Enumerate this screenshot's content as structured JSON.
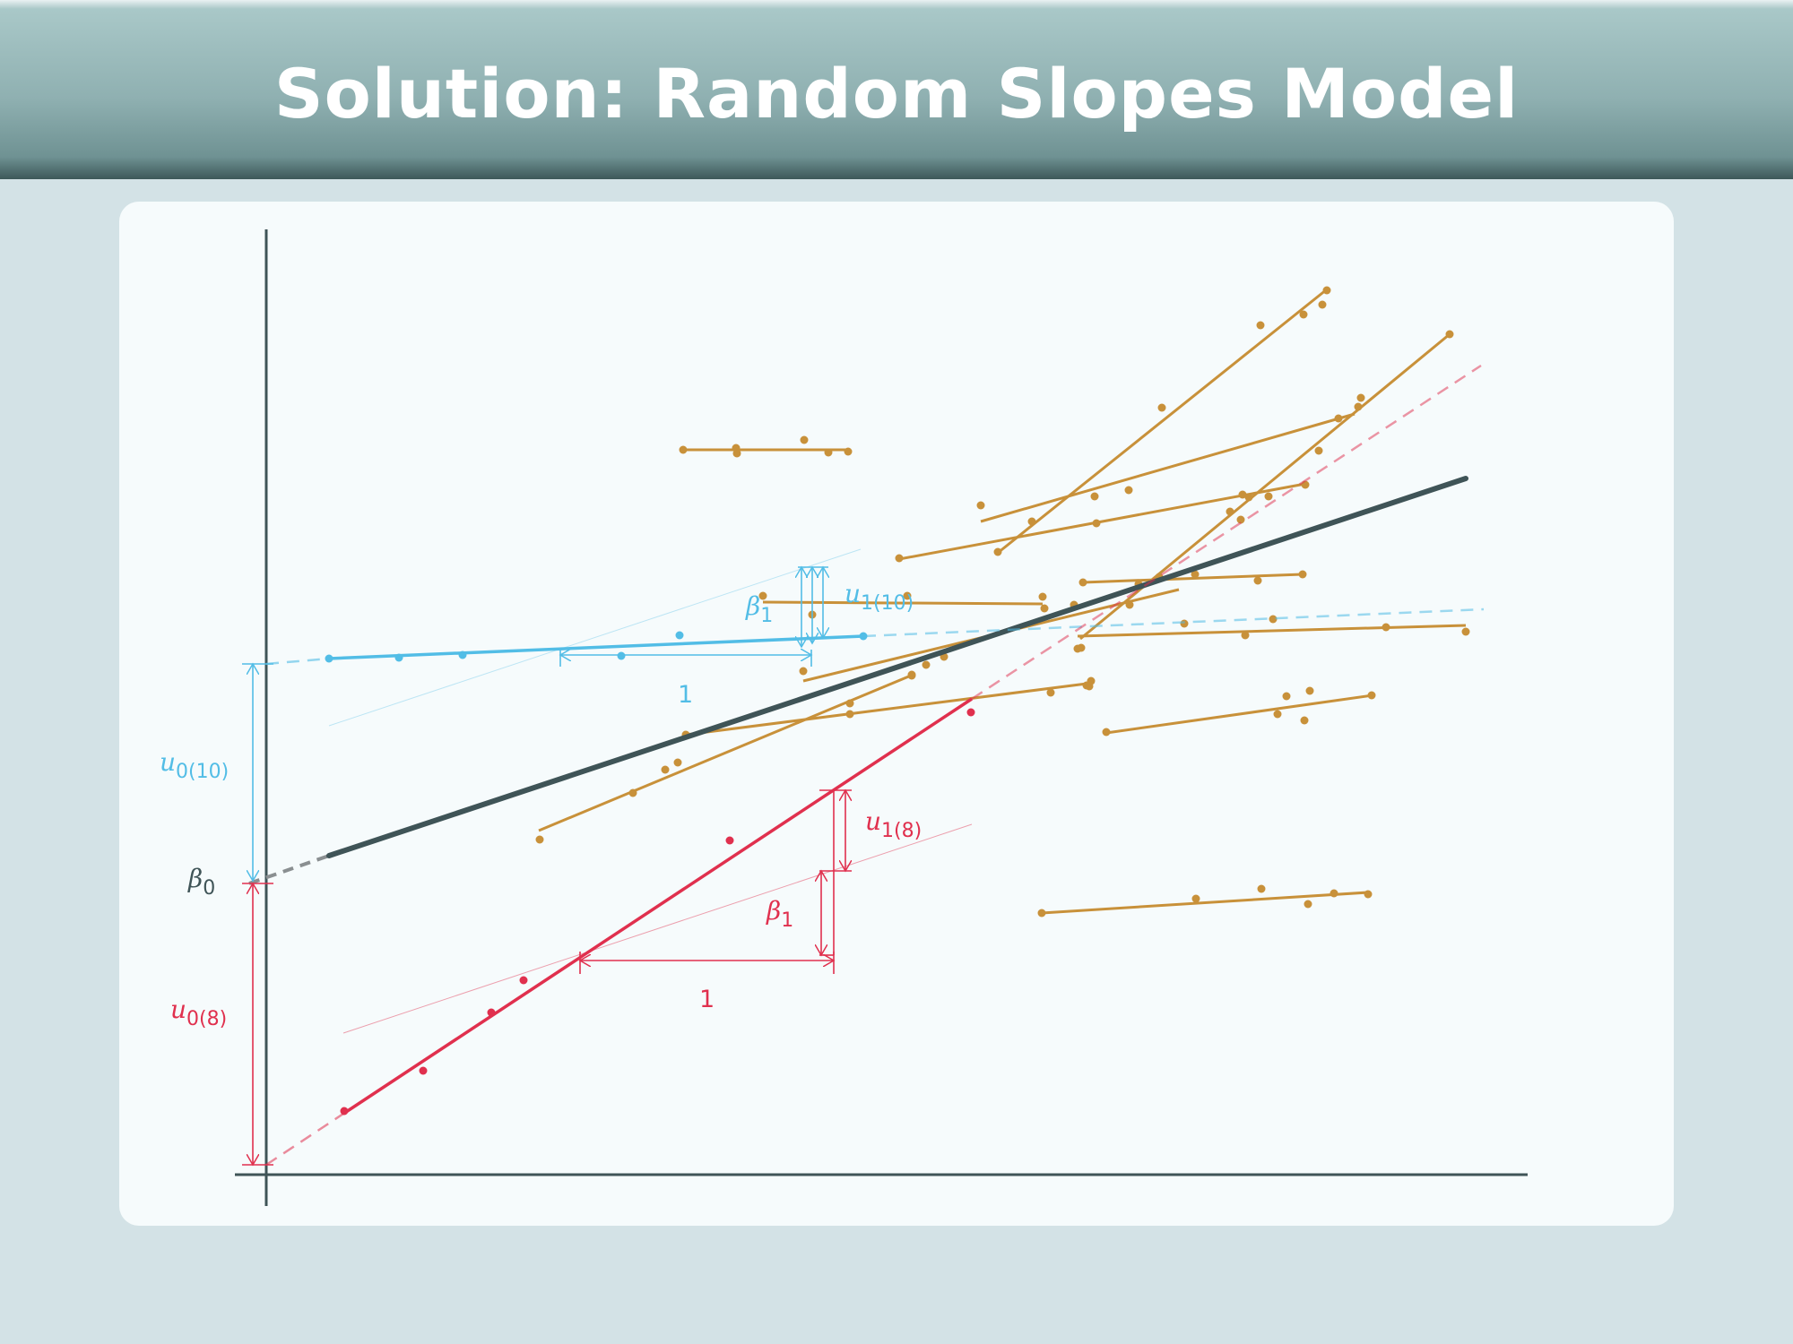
{
  "slide": {
    "title": "Solution: Random Slopes Model"
  },
  "colors": {
    "axis": "#3f5457",
    "fixed_line": "#3f5457",
    "group_orange": "#c8913a",
    "group_blue": "#52bde6",
    "group_red": "#e0304e",
    "beta0_dash": "#8a8f91"
  },
  "labels": {
    "beta0": "β",
    "beta0_sub": "0",
    "blue_beta1": "β",
    "blue_beta1_sub": "1",
    "blue_u1": "u",
    "blue_u1_sub": "1(10)",
    "blue_one": "1",
    "blue_u0": "u",
    "blue_u0_sub": "0(10)",
    "red_beta1": "β",
    "red_beta1_sub": "1",
    "red_u1": "u",
    "red_u1_sub": "1(8)",
    "red_one": "1",
    "red_u0": "u",
    "red_u0_sub": "0(8)"
  }
}
